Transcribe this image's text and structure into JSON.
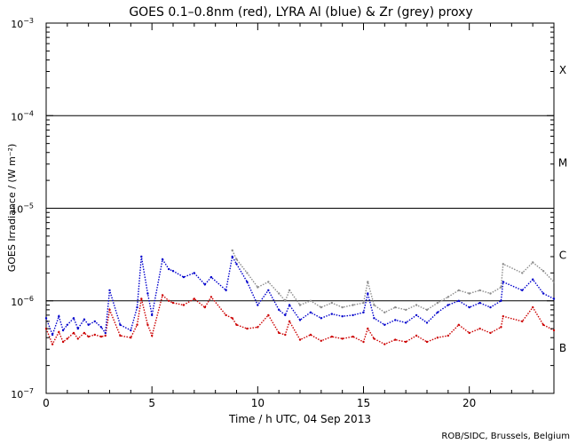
{
  "chart_data": {
    "type": "line",
    "title": "GOES 0.1–0.8nm (red), LYRA Al (blue) & Zr (grey) proxy",
    "xlabel": "Time / h UTC, 04 Sep 2013",
    "ylabel": "GOES Irradiance / (W m⁻²)",
    "credit": "ROB/SIDC, Brussels, Belgium",
    "xlim": [
      0,
      24
    ],
    "ylim_log10": [
      -7,
      -3
    ],
    "x_ticks": [
      0,
      5,
      10,
      15,
      20
    ],
    "x_tick_labels": [
      "0",
      "5",
      "10",
      "15",
      "20"
    ],
    "y_ticks": [
      {
        "exp": -3,
        "base": "10",
        "sup": "−3"
      },
      {
        "exp": -4,
        "base": "10",
        "sup": "−4"
      },
      {
        "exp": -5,
        "base": "10",
        "sup": "−5"
      },
      {
        "exp": -6,
        "base": "10",
        "sup": "−6"
      },
      {
        "exp": -7,
        "base": "10",
        "sup": "−7"
      }
    ],
    "class_lines": [
      -4,
      -5,
      -6
    ],
    "flare_classes": [
      {
        "label": "X",
        "center": -3.5
      },
      {
        "label": "M",
        "center": -4.5
      },
      {
        "label": "C",
        "center": -5.5
      },
      {
        "label": "B",
        "center": -6.5
      }
    ],
    "series": [
      {
        "name": "GOES 0.1-0.8nm",
        "color": "#cc0000",
        "x": [
          0.0,
          0.3,
          0.6,
          0.8,
          1.0,
          1.3,
          1.5,
          1.8,
          2.0,
          2.3,
          2.6,
          2.8,
          3.0,
          3.5,
          4.0,
          4.3,
          4.5,
          4.8,
          5.0,
          5.5,
          5.8,
          6.0,
          6.5,
          7.0,
          7.5,
          7.8,
          8.5,
          8.8,
          9.0,
          9.5,
          10.0,
          10.5,
          11.0,
          11.3,
          11.5,
          12.0,
          12.5,
          13.0,
          13.5,
          14.0,
          14.5,
          15.0,
          15.2,
          15.5,
          16.0,
          16.5,
          17.0,
          17.5,
          18.0,
          18.5,
          19.0,
          19.5,
          20.0,
          20.5,
          21.0,
          21.5,
          21.6,
          22.5,
          23.0,
          23.5,
          24.0
        ],
        "y": [
          5e-07,
          3.4e-07,
          4.6e-07,
          3.6e-07,
          3.9e-07,
          4.5e-07,
          3.9e-07,
          4.5e-07,
          4.1e-07,
          4.3e-07,
          4.1e-07,
          4.2e-07,
          8e-07,
          4.2e-07,
          4e-07,
          5.5e-07,
          1.05e-06,
          5.5e-07,
          4.2e-07,
          1.15e-06,
          1e-06,
          9.5e-07,
          9e-07,
          1.05e-06,
          8.5e-07,
          1.1e-06,
          7e-07,
          6.5e-07,
          5.5e-07,
          5e-07,
          5.2e-07,
          7e-07,
          4.5e-07,
          4.3e-07,
          6e-07,
          3.8e-07,
          4.3e-07,
          3.7e-07,
          4.1e-07,
          3.9e-07,
          4.1e-07,
          3.6e-07,
          5e-07,
          3.9e-07,
          3.4e-07,
          3.8e-07,
          3.6e-07,
          4.2e-07,
          3.6e-07,
          4e-07,
          4.2e-07,
          5.5e-07,
          4.5e-07,
          5e-07,
          4.5e-07,
          5.2e-07,
          6.8e-07,
          6e-07,
          8.5e-07,
          5.5e-07,
          4.8e-07
        ]
      },
      {
        "name": "LYRA Al proxy",
        "color": "#0000cc",
        "x": [
          0.0,
          0.3,
          0.6,
          0.8,
          1.0,
          1.3,
          1.5,
          1.8,
          2.0,
          2.3,
          2.6,
          2.8,
          3.0,
          3.5,
          4.0,
          4.3,
          4.5,
          4.8,
          5.0,
          5.5,
          5.8,
          6.0,
          6.5,
          7.0,
          7.5,
          7.8,
          8.5,
          8.8,
          9.0,
          9.5,
          10.0,
          10.5,
          11.0,
          11.3,
          11.5,
          12.0,
          12.5,
          13.0,
          13.5,
          14.0,
          14.5,
          15.0,
          15.2,
          15.5,
          16.0,
          16.5,
          17.0,
          17.5,
          18.0,
          18.5,
          19.0,
          19.5,
          20.0,
          20.5,
          21.0,
          21.5,
          21.6,
          22.5,
          23.0,
          23.5,
          24.0
        ],
        "y": [
          6.5e-07,
          4.3e-07,
          6.8e-07,
          4.8e-07,
          5.5e-07,
          6.5e-07,
          5e-07,
          6.3e-07,
          5.5e-07,
          6e-07,
          5.2e-07,
          4.5e-07,
          1.3e-06,
          5.5e-07,
          4.8e-07,
          8.5e-07,
          3e-06,
          1.2e-06,
          7e-07,
          2.8e-06,
          2.2e-06,
          2.1e-06,
          1.8e-06,
          2e-06,
          1.5e-06,
          1.8e-06,
          1.3e-06,
          3e-06,
          2.5e-06,
          1.6e-06,
          9e-07,
          1.3e-06,
          8e-07,
          7e-07,
          9e-07,
          6.2e-07,
          7.5e-07,
          6.5e-07,
          7.2e-07,
          6.8e-07,
          7e-07,
          7.5e-07,
          1.2e-06,
          6.5e-07,
          5.5e-07,
          6.2e-07,
          5.8e-07,
          7e-07,
          5.8e-07,
          7.5e-07,
          9e-07,
          1e-06,
          8.5e-07,
          9.5e-07,
          8.5e-07,
          1e-06,
          1.6e-06,
          1.3e-06,
          1.7e-06,
          1.2e-06,
          1.05e-06
        ]
      },
      {
        "name": "LYRA Zr proxy",
        "color": "#8c8c8c",
        "x": [
          8.8,
          9.0,
          9.5,
          10.0,
          10.5,
          11.0,
          11.3,
          11.5,
          12.0,
          12.5,
          13.0,
          13.5,
          14.0,
          14.5,
          15.0,
          15.2,
          15.5,
          16.0,
          16.5,
          17.0,
          17.5,
          18.0,
          18.5,
          19.0,
          19.5,
          20.0,
          20.5,
          21.0,
          21.5,
          21.6,
          22.5,
          23.0,
          23.5,
          24.0
        ],
        "y": [
          3.5e-06,
          2.8e-06,
          2e-06,
          1.4e-06,
          1.6e-06,
          1.2e-06,
          1e-06,
          1.3e-06,
          9e-07,
          1e-06,
          8.5e-07,
          9.5e-07,
          8.5e-07,
          9e-07,
          9.5e-07,
          1.6e-06,
          9e-07,
          7.5e-07,
          8.5e-07,
          8e-07,
          9e-07,
          8e-07,
          9.5e-07,
          1.1e-06,
          1.3e-06,
          1.2e-06,
          1.3e-06,
          1.2e-06,
          1.4e-06,
          2.5e-06,
          2e-06,
          2.6e-06,
          2.1e-06,
          1.6e-06
        ]
      }
    ]
  }
}
